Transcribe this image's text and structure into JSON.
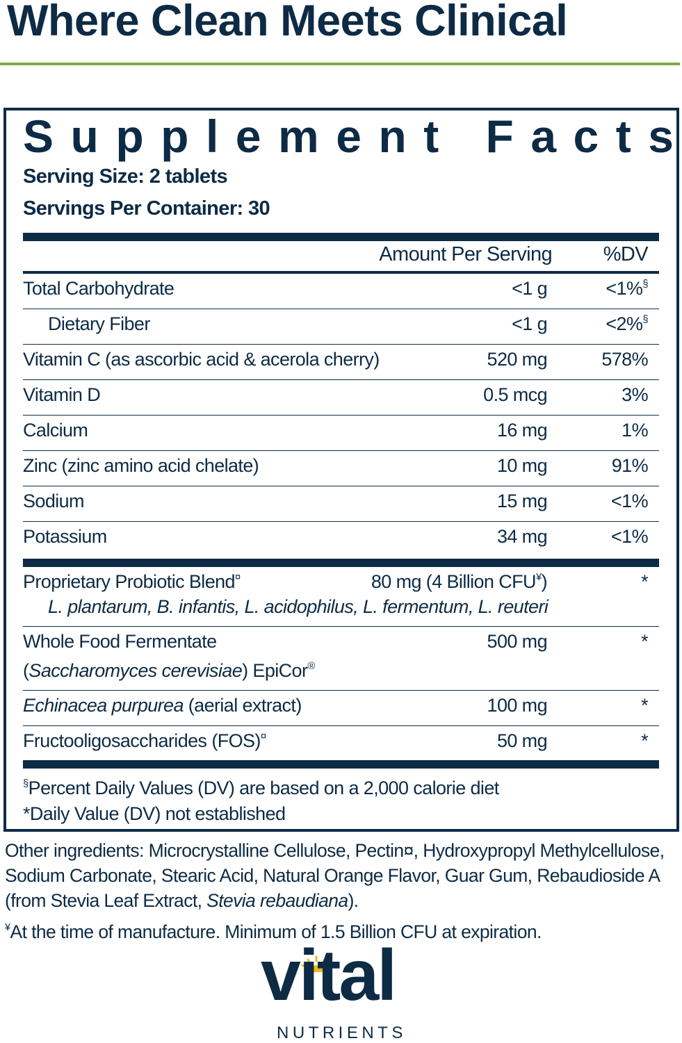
{
  "header": {
    "title": "Where Clean Meets Clinical"
  },
  "facts": {
    "title": "Supplement Facts",
    "serving_size": "Serving Size: 2 tablets",
    "servings_per_container": "Servings Per Container: 30",
    "columns": [
      "Amount Per Serving",
      "%DV"
    ],
    "nutrients": [
      {
        "name": [
          "Total Carbohydrate"
        ],
        "amount": [
          "<1 g"
        ],
        "dv": [
          "<1%",
          {
            "text": "§",
            "sup": true
          }
        ]
      },
      {
        "name": [
          "Dietary Fiber"
        ],
        "indent": true,
        "amount": [
          "<1 g"
        ],
        "dv": [
          "<2%",
          {
            "text": "§",
            "sup": true
          }
        ]
      },
      {
        "name": [
          "Vitamin C (as ascorbic acid & acerola cherry)"
        ],
        "amount": [
          "520 mg"
        ],
        "dv": [
          "578%"
        ]
      },
      {
        "name": [
          "Vitamin D"
        ],
        "amount": [
          "0.5 mcg"
        ],
        "dv": [
          "3%"
        ]
      },
      {
        "name": [
          "Calcium"
        ],
        "amount": [
          "16 mg"
        ],
        "dv": [
          "1%"
        ]
      },
      {
        "name": [
          "Zinc (zinc amino acid chelate)"
        ],
        "amount": [
          "10 mg"
        ],
        "dv": [
          "91%"
        ]
      },
      {
        "name": [
          "Sodium"
        ],
        "amount": [
          "15 mg"
        ],
        "dv": [
          "<1%"
        ]
      },
      {
        "name": [
          "Potassium"
        ],
        "amount": [
          "34 mg"
        ],
        "dv": [
          "<1%"
        ]
      }
    ],
    "blends": [
      {
        "name": [
          "Proprietary Probiotic Blend",
          {
            "text": "¤",
            "sup": true
          }
        ],
        "amount": [
          "80 mg (4 Billion CFU",
          {
            "text": "¥",
            "sup": true
          },
          ")"
        ],
        "dv": [
          "*"
        ],
        "subline": [
          {
            "text": "L. plantarum, B. infantis, L. acidophilus, L. fermentum, L. reuteri",
            "italic": true
          }
        ],
        "subline_indent": true
      },
      {
        "name": [
          "Whole Food Fermentate"
        ],
        "amount": [
          "500 mg"
        ],
        "dv": [
          "*"
        ],
        "subline": [
          "(",
          {
            "text": "Saccharomyces cerevisiae",
            "italic": true
          },
          ") EpiCor",
          {
            "text": "®",
            "sup": true
          }
        ]
      },
      {
        "name": [
          {
            "text": "Echinacea purpurea",
            "italic": true
          },
          " (aerial extract)"
        ],
        "amount": [
          "100 mg"
        ],
        "dv": [
          "*"
        ]
      },
      {
        "name": [
          "Fructooligosaccharides (FOS)",
          {
            "text": "¤",
            "sup": true
          }
        ],
        "amount": [
          "50 mg"
        ],
        "dv": [
          "*"
        ]
      }
    ],
    "footnotes": [
      [
        {
          "text": "§",
          "sup": true
        },
        "Percent Daily Values (DV) are based on a 2,000 calorie diet"
      ],
      [
        "*Daily Value (DV) not established"
      ]
    ]
  },
  "other_ingredients": [
    "Other ingredients: Microcrystalline Cellulose, Pectin¤, Hydroxypropyl Methylcellulose, Sodium Carbonate, Stearic Acid, Natural Orange Flavor, Guar Gum, Rebaudioside A (from Stevia Leaf Extract, ",
    {
      "text": "Stevia rebaudiana",
      "italic": true
    },
    ")."
  ],
  "manufacture_note": [
    {
      "text": "¥",
      "sup": true
    },
    "At the time of manufacture. Minimum of 1.5 Billion CFU at expiration."
  ],
  "brand": {
    "name": "vital",
    "tagline": "NUTRIENTS"
  }
}
